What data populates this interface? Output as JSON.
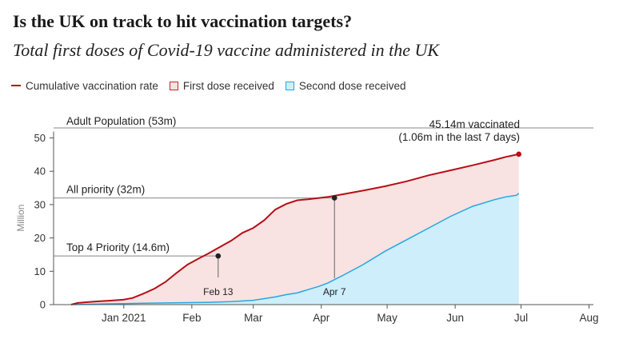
{
  "title": "Is the UK on track to hit vaccination targets?",
  "subtitle": "Total first doses of Covid-19 vaccine administered in the UK",
  "colors": {
    "cumulative_line": "#b50f16",
    "first_dose_fill": "#f8e2e2",
    "first_dose_border": "#c8242b",
    "second_dose_fill": "#cdeefa",
    "second_dose_line": "#25a7e2",
    "reference_line": "#888888",
    "axis": "#555555"
  },
  "legend": {
    "cumulative": "Cumulative vaccination rate",
    "first": "First dose received",
    "second": "Second dose received"
  },
  "chart_data": {
    "type": "area",
    "ylabel": "Million",
    "ylim": [
      0,
      53
    ],
    "y_ticks": [
      0,
      10,
      20,
      30,
      40,
      50
    ],
    "x_ticks": [
      {
        "label": "Jan 2021",
        "day": 31
      },
      {
        "label": "Feb",
        "day": 62
      },
      {
        "label": "Mar",
        "day": 90
      },
      {
        "label": "Apr",
        "day": 121
      },
      {
        "label": "May",
        "day": 151
      },
      {
        "label": "Jun",
        "day": 182
      },
      {
        "label": "Jul",
        "day": 212
      },
      {
        "label": "Aug",
        "day": 243
      }
    ],
    "xlim_days": [
      -1,
      245
    ],
    "x_unit": "days since 1 Dec 2020",
    "series": [
      {
        "name": "Cumulative vaccination rate",
        "x": [
          7,
          10,
          15,
          20,
          25,
          31,
          35,
          40,
          45,
          50,
          55,
          60,
          65,
          70,
          74,
          80,
          85,
          90,
          95,
          100,
          105,
          110,
          115,
          120,
          124,
          130,
          140,
          150,
          160,
          170,
          180,
          190,
          200,
          205,
          210,
          211
        ],
        "values": [
          0,
          0.5,
          0.8,
          1.0,
          1.2,
          1.5,
          2.0,
          3.3,
          4.8,
          6.8,
          9.5,
          12.0,
          13.8,
          15.5,
          17.0,
          19.2,
          21.5,
          23.0,
          25.3,
          28.5,
          30.2,
          31.3,
          31.6,
          32.0,
          32.3,
          33.0,
          34.2,
          35.5,
          37.0,
          38.8,
          40.3,
          41.8,
          43.4,
          44.3,
          45.0,
          45.14
        ]
      },
      {
        "name": "Second dose received",
        "x": [
          7,
          20,
          31,
          40,
          50,
          60,
          70,
          80,
          90,
          100,
          105,
          110,
          115,
          120,
          124,
          130,
          140,
          150,
          160,
          170,
          180,
          190,
          200,
          205,
          210,
          211
        ],
        "values": [
          0,
          0.2,
          0.3,
          0.4,
          0.5,
          0.6,
          0.7,
          0.9,
          1.3,
          2.3,
          3.0,
          3.5,
          4.5,
          5.5,
          6.5,
          8.5,
          12.0,
          16.0,
          19.5,
          23.0,
          26.5,
          29.5,
          31.5,
          32.3,
          32.8,
          33.4
        ]
      }
    ],
    "reference_lines": [
      {
        "label": "Adult Population (53m)",
        "value": 53
      },
      {
        "label": "All priority (32m)",
        "value": 32
      },
      {
        "label": "Top 4 Priority (14.6m)",
        "value": 14.6
      }
    ],
    "annotations": [
      {
        "label": "Feb 13",
        "day": 74,
        "value": 14.6
      },
      {
        "label": "Apr 7",
        "day": 127,
        "value": 32.0
      }
    ],
    "end_annotation": {
      "line1": "45.14m vaccinated",
      "line2": "(1.06m in the last 7 days)",
      "day": 211,
      "value": 45.14
    }
  }
}
